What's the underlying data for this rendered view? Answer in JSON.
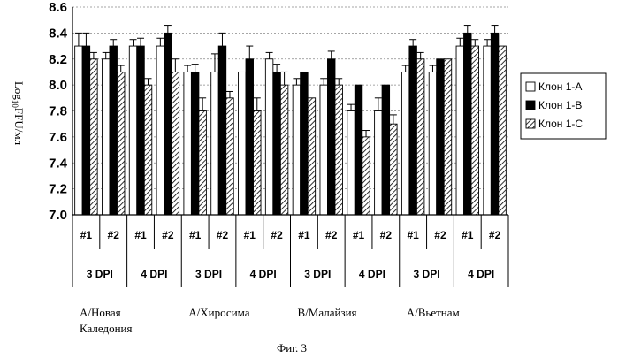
{
  "chart_data": {
    "type": "bar",
    "title": "",
    "ylabel_parts": {
      "pre": "Log",
      "sub": "10",
      "post": "FFU/мл"
    },
    "ylim": [
      7.0,
      8.6
    ],
    "yticks": [
      "8.6",
      "8.4",
      "8.2",
      "8.0",
      "7.8",
      "7.6",
      "7.4",
      "7.2",
      "7.0"
    ],
    "grid": true,
    "legend_position": "right",
    "colors": {
      "Клон 1-A": "#ffffff",
      "Клон 1-B": "#000000",
      "Клон 1-C": "hatch"
    },
    "groups": [
      {
        "strain": "A/Новая Каледония",
        "dpi": [
          "3 DPI",
          "4 DPI"
        ]
      },
      {
        "strain": "A/Хиросима",
        "dpi": [
          "3 DPI",
          "4 DPI"
        ]
      },
      {
        "strain": "B/Малайзия",
        "dpi": [
          "3 DPI",
          "4 DPI"
        ]
      },
      {
        "strain": "A/Вьетнам",
        "dpi": [
          "3 DPI",
          "4 DPI"
        ]
      }
    ],
    "strain_labels": [
      {
        "line1": "A/Новая",
        "line2": "Каледония"
      },
      {
        "line1": "A/Хиросима",
        "line2": ""
      },
      {
        "line1": "B/Малайзия",
        "line2": ""
      },
      {
        "line1": "A/Вьетнам",
        "line2": ""
      }
    ],
    "dpi_labels": [
      "3 DPI",
      "4 DPI",
      "3 DPI",
      "4 DPI",
      "3 DPI",
      "4 DPI",
      "3 DPI",
      "4 DPI"
    ],
    "categories": [
      "#1",
      "#2",
      "#1",
      "#2",
      "#1",
      "#2",
      "#1",
      "#2",
      "#1",
      "#2",
      "#1",
      "#2",
      "#1",
      "#2",
      "#1",
      "#2"
    ],
    "series": [
      {
        "name": "Клон 1-A",
        "values": [
          8.3,
          8.2,
          8.3,
          8.3,
          8.1,
          8.1,
          8.1,
          8.2,
          8.0,
          8.0,
          7.8,
          7.8,
          8.1,
          8.1,
          8.3,
          8.3
        ],
        "errors": [
          0.1,
          0.05,
          0.05,
          0.06,
          0.05,
          0.14,
          0.0,
          0.05,
          0.05,
          0.05,
          0.05,
          0.1,
          0.05,
          0.05,
          0.06,
          0.05
        ]
      },
      {
        "name": "Клон 1-B",
        "values": [
          8.3,
          8.3,
          8.3,
          8.4,
          8.1,
          8.3,
          8.2,
          8.1,
          8.1,
          8.2,
          8.0,
          8.0,
          8.3,
          8.2,
          8.4,
          8.4
        ],
        "errors": [
          0.1,
          0.05,
          0.06,
          0.06,
          0.06,
          0.1,
          0.1,
          0.06,
          0.0,
          0.06,
          0.0,
          0.0,
          0.05,
          0.0,
          0.06,
          0.06
        ]
      },
      {
        "name": "Клон 1-C",
        "values": [
          8.2,
          8.1,
          8.0,
          8.1,
          7.8,
          7.9,
          7.8,
          8.0,
          7.9,
          8.0,
          7.6,
          7.7,
          8.2,
          8.2,
          8.3,
          8.3
        ],
        "errors": [
          0.05,
          0.05,
          0.05,
          0.1,
          0.1,
          0.05,
          0.1,
          0.1,
          0.0,
          0.05,
          0.05,
          0.07,
          0.05,
          0.0,
          0.05,
          0.0
        ]
      }
    ]
  },
  "caption": "Фиг. 3"
}
